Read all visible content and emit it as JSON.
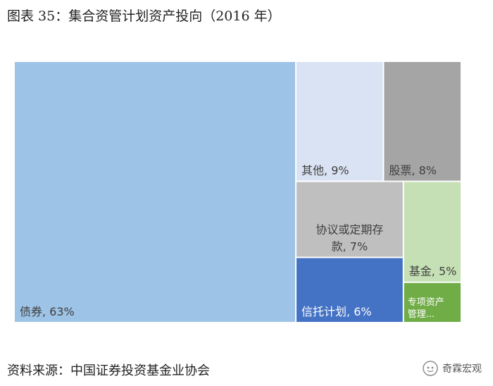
{
  "title": "图表 35：集合资管计划资产投向（2016 年）",
  "source": "资料来源：中国证券投资基金业协会",
  "watermark": "奇霖宏观",
  "chart_data": {
    "type": "treemap",
    "items": [
      {
        "name": "债券",
        "value": 63,
        "label": "债券, 63%",
        "color": "#9dc3e6",
        "text_color": "#404040"
      },
      {
        "name": "其他",
        "value": 9,
        "label": "其他, 9%",
        "color": "#dae3f3",
        "text_color": "#404040"
      },
      {
        "name": "股票",
        "value": 8,
        "label": "股票, 8%",
        "color": "#a5a5a5",
        "text_color": "#404040"
      },
      {
        "name": "协议或定期存款",
        "value": 7,
        "label_lines": [
          "协议或定期存",
          "款, 7%"
        ],
        "color": "#bfbfbf",
        "text_color": "#404040"
      },
      {
        "name": "基金",
        "value": 5,
        "label": "基金, 5%",
        "color": "#c5e0b4",
        "text_color": "#404040"
      },
      {
        "name": "信托计划",
        "value": 6,
        "label": "信托计划, 6%",
        "color": "#4472c4",
        "text_color": "#ffffff"
      },
      {
        "name": "专项资产管理",
        "value": 2,
        "label_lines": [
          "专项资产",
          "管理..."
        ],
        "color": "#70ad47",
        "text_color": "#ffffff"
      }
    ]
  }
}
